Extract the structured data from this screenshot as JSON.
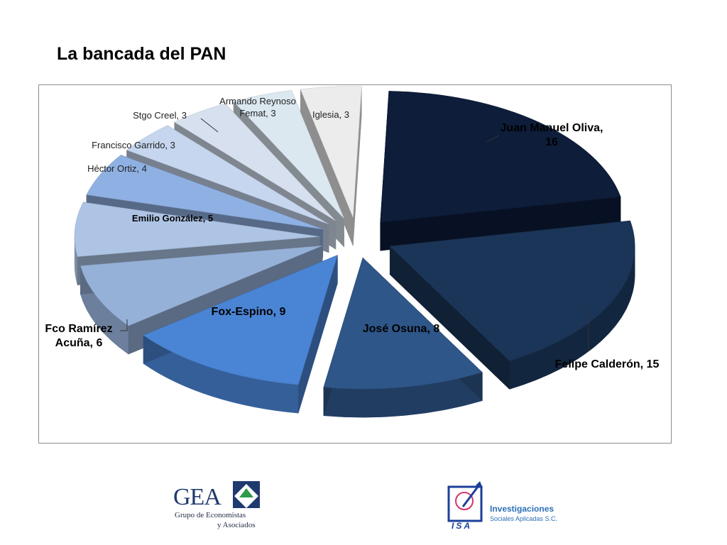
{
  "slide": {
    "title": "La bancada del PAN"
  },
  "chart_data": {
    "type": "pie",
    "style": "exploded 3d pie",
    "label_format": "name, value",
    "slices": [
      {
        "name": "Juan Manuel Oliva",
        "value": 16,
        "color": "#0d1d3a",
        "label_lines": [
          "Juan Manuel Oliva,",
          "16"
        ]
      },
      {
        "name": "Felipe Calderón",
        "value": 15,
        "color": "#1b3558",
        "label_lines": [
          "Felipe Calderón, 15"
        ]
      },
      {
        "name": "José Osuna",
        "value": 8,
        "color": "#2e5688",
        "label_lines": [
          "José Osuna, 8"
        ]
      },
      {
        "name": "Fox-Espino",
        "value": 9,
        "color": "#4a84d4",
        "label_lines": [
          "Fox-Espino, 9"
        ]
      },
      {
        "name": "Fco Ramírez Acuña",
        "value": 6,
        "color": "#96b1d8",
        "label_lines": [
          "Fco Ramírez",
          "Acuña, 6"
        ]
      },
      {
        "name": "Emilio González",
        "value": 5,
        "color": "#aec4e4",
        "label_lines": [
          "Emilio González,  5"
        ]
      },
      {
        "name": "Héctor Ortiz",
        "value": 4,
        "color": "#8fb0e2",
        "label_lines": [
          "Héctor Ortiz, 4"
        ]
      },
      {
        "name": "Francisco Garrido",
        "value": 3,
        "color": "#c6d6ee",
        "label_lines": [
          "Francisco Garrido, 3"
        ]
      },
      {
        "name": "Stgo Creel",
        "value": 3,
        "color": "#d6e0ee",
        "label_lines": [
          "Stgo Creel, 3"
        ]
      },
      {
        "name": "Armando Reynoso Femat",
        "value": 3,
        "color": "#dbe8f0",
        "label_lines": [
          "Armando Reynoso",
          "Femat, 3"
        ]
      },
      {
        "name": "Iglesia",
        "value": 3,
        "color": "#ececec",
        "label_lines": [
          "Iglesia, 3"
        ]
      }
    ]
  },
  "logos": {
    "gea": {
      "mark_text": "GEA",
      "line1": "Grupo de Economistas",
      "line2": "y Asociados"
    },
    "isa": {
      "mark_text": "ISA",
      "name": "Investigaciones",
      "sub": "Sociales Aplicadas S.C."
    }
  }
}
